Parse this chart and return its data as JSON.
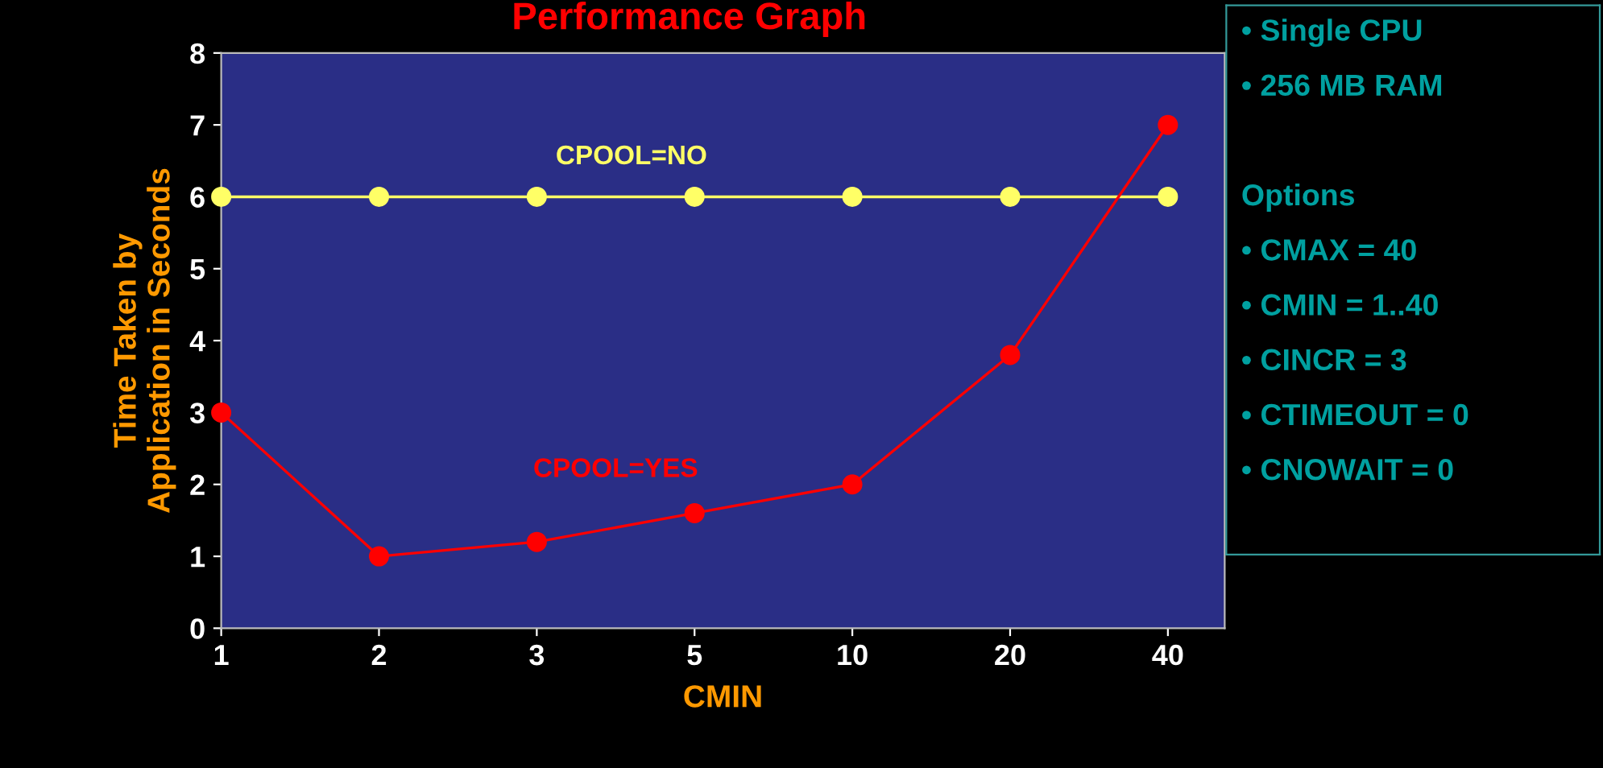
{
  "chart_data": {
    "type": "line",
    "title": "Performance Graph",
    "xlabel": "CMIN",
    "ylabel": "Time Taken by\nApplication in Seconds",
    "categories": [
      "1",
      "2",
      "3",
      "5",
      "10",
      "20",
      "40"
    ],
    "series": [
      {
        "name": "CPOOL=NO",
        "color": "#ffff66",
        "values": [
          6,
          6,
          6,
          6,
          6,
          6,
          6
        ]
      },
      {
        "name": "CPOOL=YES",
        "color": "#ff0000",
        "values": [
          3,
          1,
          1.2,
          1.6,
          2,
          3.8,
          7
        ]
      }
    ],
    "ylim": [
      0,
      8
    ],
    "yticks": [
      0,
      1,
      2,
      3,
      4,
      5,
      6,
      7,
      8
    ],
    "grid": false,
    "legend": false,
    "marker": "circle",
    "line_style": "solid",
    "annotations": [
      "• Single CPU",
      "• 256 MB RAM",
      "Options",
      "• CMAX = 40",
      "• CMIN = 1..40",
      "• CINCR = 3",
      "• CTIMEOUT = 0",
      "• CNOWAIT = 0"
    ]
  }
}
